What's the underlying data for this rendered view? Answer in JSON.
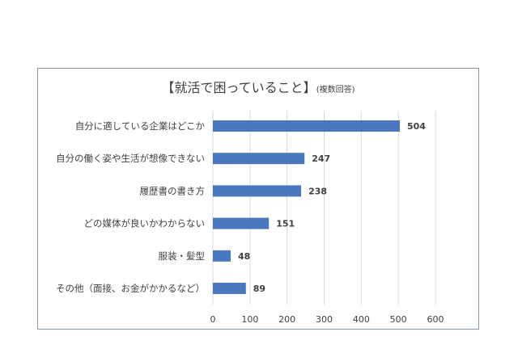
{
  "chart_data": {
    "type": "bar",
    "orientation": "horizontal",
    "title": "【就活で困っていること】",
    "subtitle": "(複数回答)",
    "categories": [
      "自分に適している企業はどこか",
      "自分の働く姿や生活が想像できない",
      "履歴書の書き方",
      "どの媒体が良いかわからない",
      "服装・髪型",
      "その他（面接、お金がかかるなど）"
    ],
    "values": [
      504,
      247,
      238,
      151,
      48,
      89
    ],
    "xlim": [
      0,
      600
    ],
    "xticks": [
      0,
      100,
      200,
      300,
      400,
      500,
      600
    ],
    "grid": true,
    "data_labels": true,
    "colors": {
      "bar": "#4a78bf",
      "grid": "#d9d9d9",
      "text": "#404040"
    }
  }
}
